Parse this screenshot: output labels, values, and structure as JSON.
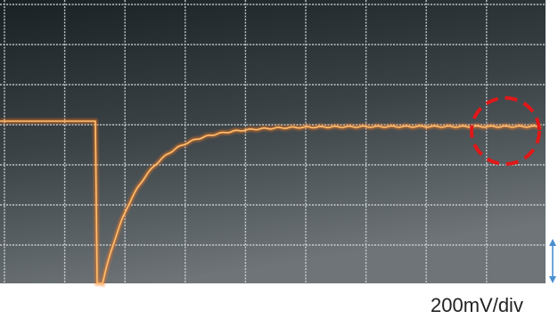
{
  "annotation": {
    "scale_label": "200mV/div"
  }
}
